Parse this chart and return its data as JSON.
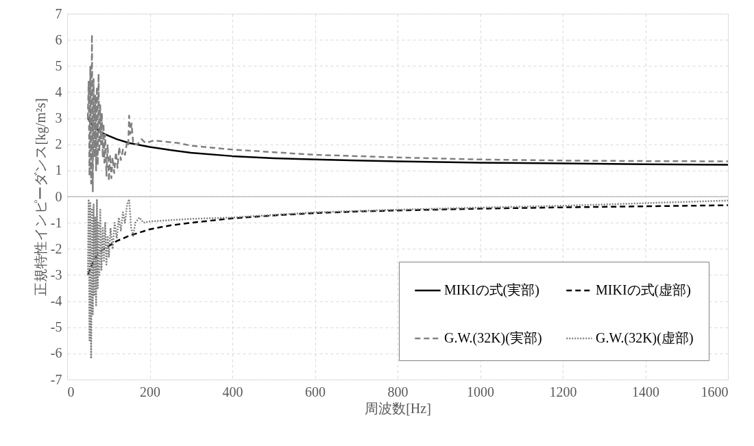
{
  "chart_data": {
    "type": "line",
    "xlabel": "周波数[Hz]",
    "ylabel": "正規特性インピーダンス[kg/m²s]",
    "xlim": [
      0,
      1600
    ],
    "xticks": [
      0,
      200,
      400,
      600,
      800,
      {
        "value": 1000,
        "label": "1000"
      },
      {
        "value": 1200,
        "label": "1200"
      },
      {
        "value": 1400,
        "label": "1400"
      },
      {
        "value": 1600,
        "label": "1600"
      }
    ],
    "ylim": [
      -7,
      7
    ],
    "yticks": [
      -7,
      -6,
      -5,
      -4,
      -3,
      -2,
      -1,
      0,
      1,
      2,
      3,
      4,
      5,
      6,
      7
    ],
    "grid": true,
    "legend": "bottom right",
    "ref_lines": [
      {
        "axis": "y",
        "value": 0,
        "color": "#bfbfbf"
      }
    ],
    "series": [
      {
        "name": "MIKIの式(実部)",
        "color": "#000000",
        "line_style": "solid",
        "x": [
          50,
          60,
          70,
          80,
          90,
          100,
          120,
          150,
          200,
          250,
          300,
          400,
          500,
          600,
          700,
          800,
          1000,
          1200,
          1400,
          1600
        ],
        "values": [
          3.0,
          2.75,
          2.6,
          2.48,
          2.4,
          2.33,
          2.2,
          2.05,
          1.9,
          1.78,
          1.68,
          1.55,
          1.47,
          1.42,
          1.38,
          1.35,
          1.3,
          1.27,
          1.24,
          1.22
        ]
      },
      {
        "name": "MIKIの式(虚部)",
        "color": "#000000",
        "line_style": "dashed",
        "x": [
          50,
          60,
          70,
          80,
          90,
          100,
          120,
          150,
          200,
          250,
          300,
          400,
          500,
          600,
          700,
          800,
          1000,
          1200,
          1400,
          1600
        ],
        "values": [
          -3.0,
          -2.6,
          -2.3,
          -2.1,
          -2.0,
          -1.9,
          -1.7,
          -1.5,
          -1.25,
          -1.1,
          -1.0,
          -0.83,
          -0.72,
          -0.63,
          -0.57,
          -0.53,
          -0.46,
          -0.41,
          -0.37,
          -0.33
        ]
      },
      {
        "name": "G.W.(32K)(実部)",
        "color": "#808080",
        "line_style": "dashed",
        "x": [
          50,
          52,
          54,
          56,
          58,
          60,
          62,
          64,
          66,
          68,
          70,
          72,
          74,
          76,
          78,
          80,
          82,
          84,
          86,
          88,
          90,
          92,
          95,
          98,
          101,
          104,
          107,
          110,
          114,
          118,
          122,
          126,
          130,
          135,
          140,
          145,
          148,
          150,
          153,
          156,
          160,
          170,
          180,
          190,
          210,
          240,
          270,
          300,
          400,
          500,
          600,
          800,
          1000,
          1200,
          1400,
          1600
        ],
        "values": [
          3.0,
          4.4,
          0.8,
          5.0,
          0.5,
          6.2,
          0.2,
          4.5,
          1.5,
          3.9,
          1.0,
          4.2,
          1.2,
          4.7,
          1.7,
          3.5,
          2.0,
          3.2,
          1.5,
          2.8,
          1.3,
          2.4,
          0.8,
          2.0,
          0.6,
          1.6,
          0.7,
          1.5,
          0.9,
          1.7,
          1.1,
          1.9,
          1.4,
          1.8,
          1.6,
          2.1,
          2.0,
          3.1,
          2.4,
          2.8,
          2.0,
          2.0,
          2.2,
          2.05,
          2.15,
          2.1,
          2.05,
          1.95,
          1.8,
          1.7,
          1.6,
          1.5,
          1.42,
          1.38,
          1.36,
          1.35
        ]
      },
      {
        "name": "G.W.(32K)(虚部)",
        "color": "#808080",
        "line_style": "dotted",
        "x": [
          50,
          52,
          54,
          56,
          58,
          60,
          62,
          64,
          66,
          68,
          70,
          72,
          74,
          76,
          78,
          80,
          83,
          86,
          89,
          92,
          95,
          98,
          101,
          105,
          110,
          115,
          120,
          125,
          130,
          135,
          140,
          145,
          150,
          155,
          160,
          165,
          175,
          185,
          200,
          250,
          300,
          400,
          500,
          600,
          800,
          1000,
          1200,
          1400,
          1600
        ],
        "values": [
          -3.0,
          -0.1,
          -5.5,
          -0.2,
          -6.2,
          -0.5,
          -4.5,
          -0.3,
          -3.8,
          -0.8,
          -4.2,
          -0.1,
          -3.5,
          -1.0,
          -3.0,
          -0.5,
          -2.8,
          -1.2,
          -2.5,
          -1.0,
          -2.6,
          -1.5,
          -2.3,
          -1.2,
          -2.0,
          -1.0,
          -1.6,
          -0.8,
          -1.3,
          -0.6,
          -1.0,
          -0.3,
          -0.1,
          -1.2,
          -1.5,
          -1.0,
          -0.8,
          -1.0,
          -0.95,
          -0.9,
          -0.85,
          -0.8,
          -0.7,
          -0.6,
          -0.5,
          -0.42,
          -0.35,
          -0.25,
          -0.15
        ]
      }
    ]
  }
}
